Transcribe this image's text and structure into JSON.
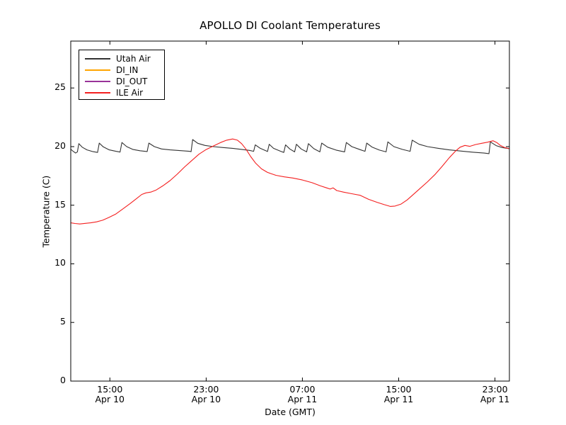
{
  "chart_data": {
    "type": "line",
    "title": "APOLLO DI Coolant Temperatures",
    "xlabel": "Date (GMT)",
    "ylabel": "Temperature (C)",
    "grid": false,
    "legend_position": "upper left",
    "ylim": [
      0,
      29
    ],
    "yticks": [
      0,
      5,
      10,
      15,
      20,
      25
    ],
    "x_unit": "hours since Apr 10 00:00 GMT",
    "xlim_hours": [
      11.75,
      48.2
    ],
    "xticks": [
      {
        "hour": 15,
        "time": "15:00",
        "date": "Apr 10"
      },
      {
        "hour": 23,
        "time": "23:00",
        "date": "Apr 10"
      },
      {
        "hour": 31,
        "time": "07:00",
        "date": "Apr 11"
      },
      {
        "hour": 39,
        "time": "15:00",
        "date": "Apr 11"
      },
      {
        "hour": 47,
        "time": "23:00",
        "date": "Apr 11"
      }
    ],
    "series": [
      {
        "name": "Utah Air",
        "color": "#333333",
        "opacity": 1,
        "points": [
          [
            11.75,
            19.78
          ],
          [
            11.95,
            19.6
          ],
          [
            12.15,
            19.45
          ],
          [
            12.3,
            19.55
          ],
          [
            12.42,
            20.25
          ],
          [
            12.7,
            19.95
          ],
          [
            13.1,
            19.72
          ],
          [
            13.6,
            19.57
          ],
          [
            13.98,
            19.5
          ],
          [
            14.12,
            20.3
          ],
          [
            14.45,
            19.98
          ],
          [
            14.95,
            19.72
          ],
          [
            15.5,
            19.6
          ],
          [
            15.85,
            19.53
          ],
          [
            16.0,
            20.35
          ],
          [
            16.4,
            20.0
          ],
          [
            16.9,
            19.76
          ],
          [
            17.5,
            19.65
          ],
          [
            18.1,
            19.58
          ],
          [
            18.24,
            20.3
          ],
          [
            18.7,
            20.0
          ],
          [
            19.3,
            19.8
          ],
          [
            20.0,
            19.72
          ],
          [
            20.8,
            19.66
          ],
          [
            21.6,
            19.6
          ],
          [
            21.75,
            19.57
          ],
          [
            21.88,
            20.6
          ],
          [
            22.3,
            20.28
          ],
          [
            22.9,
            20.1
          ],
          [
            23.6,
            20.0
          ],
          [
            24.4,
            19.92
          ],
          [
            25.2,
            19.85
          ],
          [
            26.0,
            19.75
          ],
          [
            26.6,
            19.68
          ],
          [
            26.95,
            19.6
          ],
          [
            27.08,
            20.15
          ],
          [
            27.5,
            19.85
          ],
          [
            27.95,
            19.65
          ],
          [
            28.1,
            19.58
          ],
          [
            28.24,
            20.2
          ],
          [
            28.6,
            19.85
          ],
          [
            29.2,
            19.6
          ],
          [
            29.45,
            19.5
          ],
          [
            29.6,
            20.15
          ],
          [
            29.95,
            19.8
          ],
          [
            30.35,
            19.55
          ],
          [
            30.5,
            20.2
          ],
          [
            30.9,
            19.8
          ],
          [
            31.35,
            19.55
          ],
          [
            31.5,
            20.25
          ],
          [
            31.95,
            19.82
          ],
          [
            32.45,
            19.55
          ],
          [
            32.6,
            20.3
          ],
          [
            33.1,
            19.95
          ],
          [
            33.8,
            19.7
          ],
          [
            34.5,
            19.55
          ],
          [
            34.65,
            20.35
          ],
          [
            35.1,
            20.0
          ],
          [
            35.8,
            19.74
          ],
          [
            36.2,
            19.6
          ],
          [
            36.34,
            20.3
          ],
          [
            36.8,
            19.95
          ],
          [
            37.4,
            19.7
          ],
          [
            37.95,
            19.55
          ],
          [
            38.1,
            20.4
          ],
          [
            38.6,
            20.0
          ],
          [
            39.3,
            19.76
          ],
          [
            39.95,
            19.6
          ],
          [
            40.12,
            20.55
          ],
          [
            40.7,
            20.2
          ],
          [
            41.4,
            20.0
          ],
          [
            42.3,
            19.85
          ],
          [
            43.2,
            19.72
          ],
          [
            44.2,
            19.62
          ],
          [
            45.2,
            19.52
          ],
          [
            46.1,
            19.45
          ],
          [
            46.5,
            19.4
          ],
          [
            46.62,
            20.4
          ],
          [
            47.1,
            20.08
          ],
          [
            47.6,
            19.92
          ],
          [
            48.2,
            19.82
          ]
        ]
      },
      {
        "name": "DI_IN",
        "color": "#ffa500",
        "opacity": 1,
        "points": [
          [
            11.75,
            0
          ],
          [
            48.2,
            0
          ]
        ]
      },
      {
        "name": "DI_OUT",
        "color": "#993399",
        "opacity": 0.8,
        "points": [
          [
            11.75,
            0
          ],
          [
            48.2,
            0
          ]
        ]
      },
      {
        "name": "ILE Air",
        "color": "#f42020",
        "opacity": 1,
        "points": [
          [
            11.75,
            13.5
          ],
          [
            12.1,
            13.44
          ],
          [
            12.5,
            13.4
          ],
          [
            12.9,
            13.45
          ],
          [
            13.4,
            13.5
          ],
          [
            13.9,
            13.58
          ],
          [
            14.4,
            13.72
          ],
          [
            14.9,
            13.95
          ],
          [
            15.5,
            14.25
          ],
          [
            16.1,
            14.7
          ],
          [
            16.7,
            15.15
          ],
          [
            17.2,
            15.55
          ],
          [
            17.65,
            15.92
          ],
          [
            18.0,
            16.05
          ],
          [
            18.4,
            16.12
          ],
          [
            18.85,
            16.3
          ],
          [
            19.4,
            16.65
          ],
          [
            20.0,
            17.1
          ],
          [
            20.6,
            17.65
          ],
          [
            21.2,
            18.25
          ],
          [
            21.8,
            18.8
          ],
          [
            22.4,
            19.35
          ],
          [
            23.0,
            19.75
          ],
          [
            23.6,
            20.05
          ],
          [
            24.2,
            20.35
          ],
          [
            24.7,
            20.55
          ],
          [
            25.2,
            20.65
          ],
          [
            25.6,
            20.55
          ],
          [
            25.95,
            20.25
          ],
          [
            26.3,
            19.8
          ],
          [
            26.7,
            19.15
          ],
          [
            27.1,
            18.6
          ],
          [
            27.6,
            18.1
          ],
          [
            28.1,
            17.8
          ],
          [
            28.8,
            17.55
          ],
          [
            29.5,
            17.42
          ],
          [
            30.2,
            17.32
          ],
          [
            31.0,
            17.15
          ],
          [
            31.8,
            16.92
          ],
          [
            32.5,
            16.65
          ],
          [
            33.0,
            16.48
          ],
          [
            33.3,
            16.38
          ],
          [
            33.55,
            16.48
          ],
          [
            33.85,
            16.25
          ],
          [
            34.4,
            16.12
          ],
          [
            35.1,
            15.98
          ],
          [
            35.8,
            15.85
          ],
          [
            36.5,
            15.5
          ],
          [
            37.2,
            15.25
          ],
          [
            37.8,
            15.05
          ],
          [
            38.3,
            14.9
          ],
          [
            38.7,
            14.93
          ],
          [
            39.2,
            15.1
          ],
          [
            39.7,
            15.45
          ],
          [
            40.2,
            15.9
          ],
          [
            40.8,
            16.45
          ],
          [
            41.4,
            17.0
          ],
          [
            42.0,
            17.6
          ],
          [
            42.6,
            18.3
          ],
          [
            43.2,
            19.05
          ],
          [
            43.7,
            19.6
          ],
          [
            44.1,
            19.95
          ],
          [
            44.5,
            20.1
          ],
          [
            44.9,
            20.02
          ],
          [
            45.4,
            20.18
          ],
          [
            45.9,
            20.28
          ],
          [
            46.4,
            20.38
          ],
          [
            46.85,
            20.5
          ],
          [
            47.15,
            20.35
          ],
          [
            47.45,
            20.1
          ],
          [
            47.8,
            19.92
          ],
          [
            48.2,
            19.82
          ]
        ]
      }
    ]
  }
}
